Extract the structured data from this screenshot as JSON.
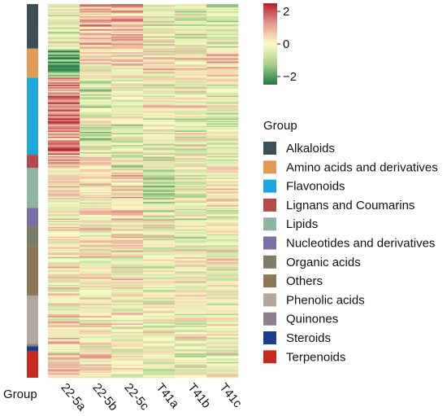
{
  "chart_data": {
    "type": "heatmap",
    "columns": [
      "22-5a",
      "22-5b",
      "22-5c",
      "T41a",
      "T41b",
      "T41c"
    ],
    "group_axis_label": "Group",
    "colorbar": {
      "ticks": [
        2,
        0,
        -2
      ],
      "tick_labels": [
        "2",
        "0",
        "−2"
      ],
      "range": [
        -2.5,
        2.5
      ],
      "colors": [
        "#1e7b45",
        "#fdfbc7",
        "#b41e2f"
      ]
    },
    "legend": {
      "title": "Group",
      "placement": "right",
      "items": [
        {
          "label": "Alkaloids",
          "color": "#3d4f57"
        },
        {
          "label": "Amino acids and derivatives",
          "color": "#e39a55"
        },
        {
          "label": "Flavonoids",
          "color": "#1ea7dc"
        },
        {
          "label": "Lignans and Coumarins",
          "color": "#b54a4a"
        },
        {
          "label": "Lipids",
          "color": "#8fb4a1"
        },
        {
          "label": "Nucleotides and derivatives",
          "color": "#7b6fa8"
        },
        {
          "label": "Organic acids",
          "color": "#7d7b6b"
        },
        {
          "label": "Others",
          "color": "#8c7857"
        },
        {
          "label": "Phenolic acids",
          "color": "#b2a79c"
        },
        {
          "label": "Quinones",
          "color": "#8e7f8f"
        },
        {
          "label": "Steroids",
          "color": "#1b3d8f"
        },
        {
          "label": "Terpenoids",
          "color": "#c42a1e"
        }
      ]
    },
    "groups": [
      {
        "name": "Alkaloids",
        "share": 0.118,
        "profile": [
          -0.4,
          0.9,
          0.8,
          -0.2,
          -0.5,
          -0.6
        ]
      },
      {
        "name": "Amino acids and derivatives",
        "share": 0.078,
        "profile": [
          -1.6,
          0.3,
          0.5,
          0.2,
          0.1,
          0.4
        ]
      },
      {
        "name": "Flavonoids",
        "share": 0.208,
        "profile": [
          1.4,
          -0.5,
          -0.3,
          -0.1,
          -0.2,
          -0.3
        ]
      },
      {
        "name": "Lignans and Coumarins",
        "share": 0.035,
        "profile": [
          1.0,
          0.0,
          -0.5,
          -0.2,
          0.0,
          -0.2
        ]
      },
      {
        "name": "Lipids",
        "share": 0.105,
        "profile": [
          0.3,
          0.2,
          0.4,
          -0.8,
          -0.3,
          0.1
        ]
      },
      {
        "name": "Nucleotides and derivatives",
        "share": 0.047,
        "profile": [
          0.2,
          0.3,
          0.4,
          -0.2,
          -0.3,
          -0.3
        ]
      },
      {
        "name": "Organic acids",
        "share": 0.056,
        "profile": [
          0.0,
          0.2,
          0.3,
          -0.1,
          -0.3,
          -0.2
        ]
      },
      {
        "name": "Others",
        "share": 0.132,
        "profile": [
          0.1,
          0.1,
          0.0,
          -0.1,
          0.0,
          -0.1
        ]
      },
      {
        "name": "Phenolic acids",
        "share": 0.13,
        "profile": [
          0.2,
          0.1,
          -0.1,
          -0.2,
          0.0,
          -0.2
        ]
      },
      {
        "name": "Quinones",
        "share": 0.008,
        "profile": [
          0.0,
          0.0,
          0.0,
          0.0,
          0.0,
          0.0
        ]
      },
      {
        "name": "Steroids",
        "share": 0.012,
        "profile": [
          0.5,
          0.2,
          0.0,
          -0.3,
          -0.2,
          -0.2
        ]
      },
      {
        "name": "Terpenoids",
        "share": 0.071,
        "profile": [
          0.3,
          0.2,
          0.1,
          -0.2,
          -0.1,
          -0.2
        ]
      }
    ]
  }
}
